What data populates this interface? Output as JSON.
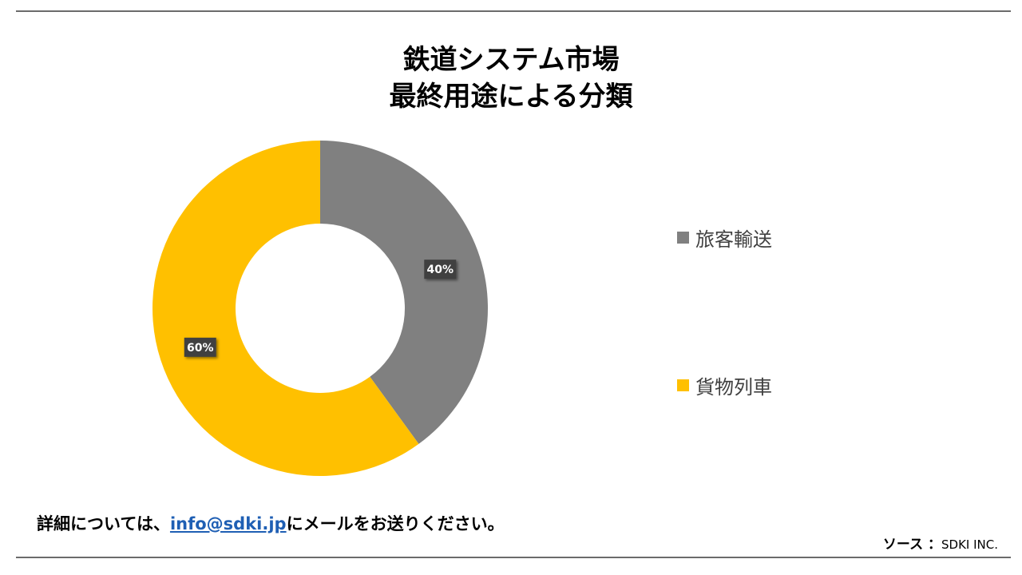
{
  "header": {
    "title_line1": "鉄道システム市場",
    "title_line2": "最終用途による分類"
  },
  "chart_data": {
    "type": "pie",
    "subtype": "donut",
    "categories": [
      "旅客輸送",
      "貨物列車"
    ],
    "values": [
      40,
      60
    ],
    "labels": [
      "40%",
      "60%"
    ],
    "colors": [
      "#808080",
      "#FFC000"
    ],
    "legend_position": "right"
  },
  "footer": {
    "note_prefix": "詳細については、",
    "email": "info@sdki.jp",
    "note_suffix": "にメールをお送りください。",
    "source_label": "ソース ：",
    "source_value": "SDKI INC."
  }
}
